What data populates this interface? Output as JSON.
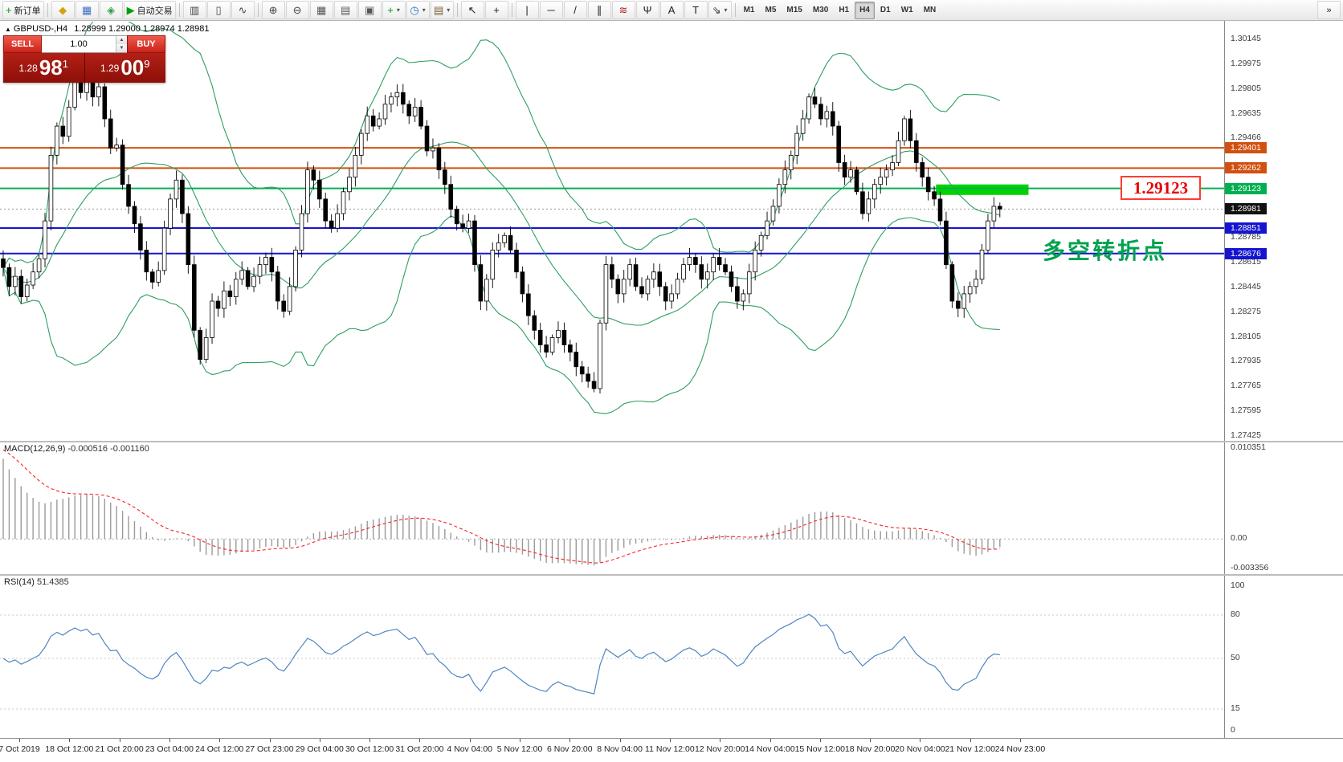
{
  "toolbar": {
    "buttons": [
      {
        "name": "new-order",
        "glyph": "+",
        "color": "#009900",
        "label": "新订单"
      },
      {
        "sep": true
      },
      {
        "name": "market-watch",
        "glyph": "◆",
        "color": "#d8a013"
      },
      {
        "name": "data-window",
        "glyph": "▦",
        "color": "#3f6fc4"
      },
      {
        "name": "navigator",
        "glyph": "◈",
        "color": "#2f9e44"
      },
      {
        "name": "autotrading",
        "glyph": "▶",
        "color": "#00a000",
        "label": "自动交易"
      },
      {
        "sep": true
      },
      {
        "name": "bar-chart-mode",
        "glyph": "▥",
        "color": "#444444"
      },
      {
        "name": "candlestick-mode",
        "glyph": "▯",
        "color": "#444444"
      },
      {
        "name": "line-chart-mode",
        "glyph": "∿",
        "color": "#444444"
      },
      {
        "sep": true
      },
      {
        "name": "zoom-in",
        "glyph": "⊕",
        "color": "#444444"
      },
      {
        "name": "zoom-out",
        "glyph": "⊖",
        "color": "#444444"
      },
      {
        "name": "tile-windows",
        "glyph": "▦",
        "color": "#555555"
      },
      {
        "name": "cascade-windows",
        "glyph": "▤",
        "color": "#555555"
      },
      {
        "name": "arrange-icons",
        "glyph": "▣",
        "color": "#555555"
      },
      {
        "name": "add-indicator",
        "glyph": "+",
        "color": "#009900",
        "dropdown": true
      },
      {
        "name": "period-selector",
        "glyph": "◷",
        "color": "#2f6fc4",
        "dropdown": true
      },
      {
        "name": "template-selector",
        "glyph": "▤",
        "color": "#7a5c2e",
        "dropdown": true
      },
      {
        "sep": true
      },
      {
        "name": "cursor-tool",
        "glyph": "↖",
        "color": "#222222"
      },
      {
        "name": "crosshair-tool",
        "glyph": "+",
        "color": "#222222"
      },
      {
        "sep": true
      },
      {
        "name": "vertical-line-tool",
        "glyph": "|",
        "color": "#222222"
      },
      {
        "name": "horizontal-line-tool",
        "glyph": "─",
        "color": "#222222"
      },
      {
        "name": "trendline-tool",
        "glyph": "/",
        "color": "#222222"
      },
      {
        "name": "channel-tool",
        "glyph": "∥",
        "color": "#222222"
      },
      {
        "name": "fibonacci-tool",
        "glyph": "≋",
        "color": "#b02020"
      },
      {
        "name": "pitchfork-tool",
        "glyph": "Ψ",
        "color": "#222222"
      },
      {
        "name": "text-tool",
        "glyph": "A",
        "color": "#222222"
      },
      {
        "name": "text-label-tool",
        "glyph": "T",
        "color": "#222222"
      },
      {
        "name": "arrows-tool",
        "glyph": "⇘",
        "color": "#222222",
        "dropdown": true
      },
      {
        "sep": true
      }
    ],
    "timeframes": [
      {
        "label": "M1"
      },
      {
        "label": "M5"
      },
      {
        "label": "M15"
      },
      {
        "label": "M30"
      },
      {
        "label": "H1"
      },
      {
        "label": "H4",
        "active": true
      },
      {
        "label": "D1"
      },
      {
        "label": "W1"
      },
      {
        "label": "MN"
      }
    ],
    "overflow_glyph": "»"
  },
  "chart_header": {
    "symbol": "GBPUSD-,H4",
    "ohlc": "1.28999 1.29000 1.28974 1.28981"
  },
  "order_panel": {
    "sell_label": "SELL",
    "buy_label": "BUY",
    "volume": "1.00",
    "sell_price_int": "1.28",
    "sell_price_big": "98",
    "sell_price_sup": "1",
    "buy_price_int": "1.29",
    "buy_price_big": "00",
    "buy_price_sup": "9"
  },
  "annotations": {
    "price_callout": "1.29123",
    "turning_point": "多空转折点",
    "turning_point_color": "#00a14e",
    "callout_color": "#e60000"
  },
  "chart_data": {
    "type": "candlestick",
    "symbol": "GBPUSD",
    "timeframe": "H4",
    "price_axis": {
      "max": 1.30145,
      "min": 1.27425,
      "ticks": [
        "1.30145",
        "1.29975",
        "1.29805",
        "1.29635",
        "1.29466",
        "1.28785",
        "1.28615",
        "1.28445",
        "1.28275",
        "1.28105",
        "1.27935",
        "1.27765",
        "1.27595",
        "1.27425"
      ]
    },
    "levels": [
      {
        "price": 1.29401,
        "label": "1.29401",
        "color": "#d2500f"
      },
      {
        "price": 1.29262,
        "label": "1.29262",
        "color": "#d2500f"
      },
      {
        "price": 1.29123,
        "label": "1.29123",
        "color": "#00b050"
      },
      {
        "price": 1.28851,
        "label": "1.28851",
        "color": "#1515cf"
      },
      {
        "price": 1.28676,
        "label": "1.28676",
        "color": "#1515cf"
      }
    ],
    "current_price": {
      "value": 1.28981,
      "label": "1.28981"
    },
    "highlight_zone": {
      "from_candle": 156.3,
      "to_candle": 171.8,
      "price_top": 1.2915,
      "price_bottom": 1.29078,
      "color": "#00d400"
    },
    "bollinger": {
      "period": 20,
      "deviation": 2,
      "color": "#2d9e60"
    },
    "closes": [
      1.2858,
      1.2845,
      1.2852,
      1.2838,
      1.2846,
      1.2855,
      1.2864,
      1.289,
      1.2935,
      1.2955,
      1.2948,
      1.2968,
      1.2985,
      1.2978,
      1.2988,
      1.2975,
      1.2982,
      1.296,
      1.294,
      1.2942,
      1.2915,
      1.29,
      1.2888,
      1.287,
      1.2855,
      1.2848,
      1.2856,
      1.2885,
      1.2905,
      1.2918,
      1.2895,
      1.286,
      1.2815,
      1.2795,
      1.281,
      1.2835,
      1.283,
      1.2842,
      1.2838,
      1.285,
      1.2856,
      1.2845,
      1.2852,
      1.286,
      1.2865,
      1.2855,
      1.2835,
      1.2828,
      1.2845,
      1.287,
      1.2895,
      1.2925,
      1.2918,
      1.2905,
      1.289,
      1.2885,
      1.2895,
      1.291,
      1.292,
      1.2935,
      1.295,
      1.2962,
      1.2955,
      1.296,
      1.297,
      1.2975,
      1.2978,
      1.297,
      1.2962,
      1.2968,
      1.2955,
      1.2938,
      1.294,
      1.2925,
      1.2915,
      1.2898,
      1.2888,
      1.2885,
      1.289,
      1.286,
      1.2835,
      1.285,
      1.287,
      1.2875,
      1.288,
      1.287,
      1.2855,
      1.284,
      1.2825,
      1.2815,
      1.2805,
      1.28,
      1.281,
      1.2815,
      1.2805,
      1.28,
      1.279,
      1.2785,
      1.278,
      1.2775,
      1.282,
      1.286,
      1.285,
      1.284,
      1.285,
      1.286,
      1.2845,
      1.284,
      1.285,
      1.2855,
      1.2845,
      1.2835,
      1.284,
      1.285,
      1.286,
      1.2865,
      1.286,
      1.285,
      1.2855,
      1.2865,
      1.286,
      1.2855,
      1.2845,
      1.2835,
      1.284,
      1.2855,
      1.287,
      1.288,
      1.289,
      1.29,
      1.2915,
      1.2925,
      1.2935,
      1.295,
      1.296,
      1.2975,
      1.297,
      1.296,
      1.2965,
      1.2955,
      1.293,
      1.292,
      1.2925,
      1.291,
      1.2895,
      1.2905,
      1.2915,
      1.292,
      1.2925,
      1.293,
      1.2945,
      1.296,
      1.2945,
      1.293,
      1.292,
      1.291,
      1.2905,
      1.289,
      1.286,
      1.2835,
      1.283,
      1.284,
      1.2845,
      1.285,
      1.287,
      1.289,
      1.29,
      1.28981
    ],
    "macd": {
      "label": "MACD(12,26,9)",
      "values_text": "-0.000516 -0.001160",
      "scale_max": 0.010351,
      "scale_min": -0.003356,
      "scale_labels": [
        {
          "value": 0.010351,
          "text": "0.010351"
        },
        {
          "value": 0,
          "text": "0.00"
        },
        {
          "value": -0.003356,
          "text": "-0.003356"
        }
      ]
    },
    "rsi": {
      "label": "RSI(14)",
      "value_text": "51.4385",
      "levels": [
        80,
        50,
        15
      ],
      "scale_labels": [
        {
          "value": 100,
          "text": "100"
        },
        {
          "value": 80,
          "text": "80"
        },
        {
          "value": 50,
          "text": "50"
        },
        {
          "value": 15,
          "text": "15"
        },
        {
          "value": 0,
          "text": "0"
        }
      ]
    },
    "time_axis": [
      "7 Oct 2019",
      "18 Oct 12:00",
      "21 Oct 20:00",
      "23 Oct 04:00",
      "24 Oct 12:00",
      "27 Oct 23:00",
      "29 Oct 04:00",
      "30 Oct 12:00",
      "31 Oct 20:00",
      "4 Nov 04:00",
      "5 Nov 12:00",
      "6 Nov 20:00",
      "8 Nov 04:00",
      "11 Nov 12:00",
      "12 Nov 20:00",
      "14 Nov 04:00",
      "15 Nov 12:00",
      "18 Nov 20:00",
      "20 Nov 04:00",
      "21 Nov 12:00",
      "24 Nov 23:00"
    ]
  }
}
